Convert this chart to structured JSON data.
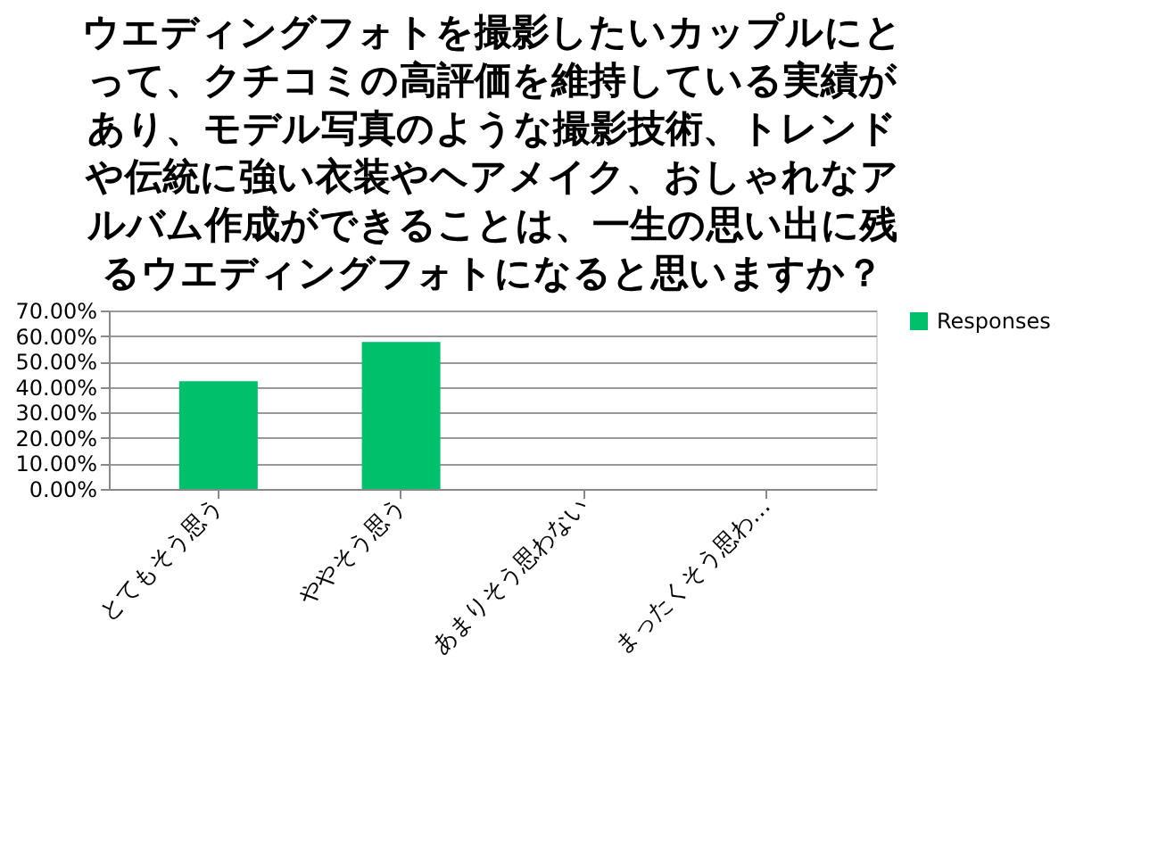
{
  "chart_data": {
    "type": "bar",
    "title": "ウエディングフォトを撮影したいカップルにとって、クチコミの高評価を維持している実績があり、モデル写真のような撮影技術、トレンドや伝統に強い衣装やヘアメイク、おしゃれなアルバム作成ができることは、一生の思い出に残るウエディングフォトになると思いますか？",
    "categories": [
      "とてもそう思う",
      "ややそう思う",
      "あまりそう思わない",
      "まったくそう思わ…"
    ],
    "series": [
      {
        "name": "Responses",
        "color": "#00c06b",
        "values": [
          42.3,
          57.7,
          0,
          0
        ]
      }
    ],
    "ylim": [
      0,
      70
    ],
    "yticks": [
      {
        "value": 0,
        "label": "0.00%"
      },
      {
        "value": 10,
        "label": "10.00%"
      },
      {
        "value": 20,
        "label": "20.00%"
      },
      {
        "value": 30,
        "label": "30.00%"
      },
      {
        "value": 40,
        "label": "40.00%"
      },
      {
        "value": 50,
        "label": "50.00%"
      },
      {
        "value": 60,
        "label": "60.00%"
      },
      {
        "value": 70,
        "label": "70.00%"
      }
    ],
    "grid": "y",
    "legend": "right"
  }
}
